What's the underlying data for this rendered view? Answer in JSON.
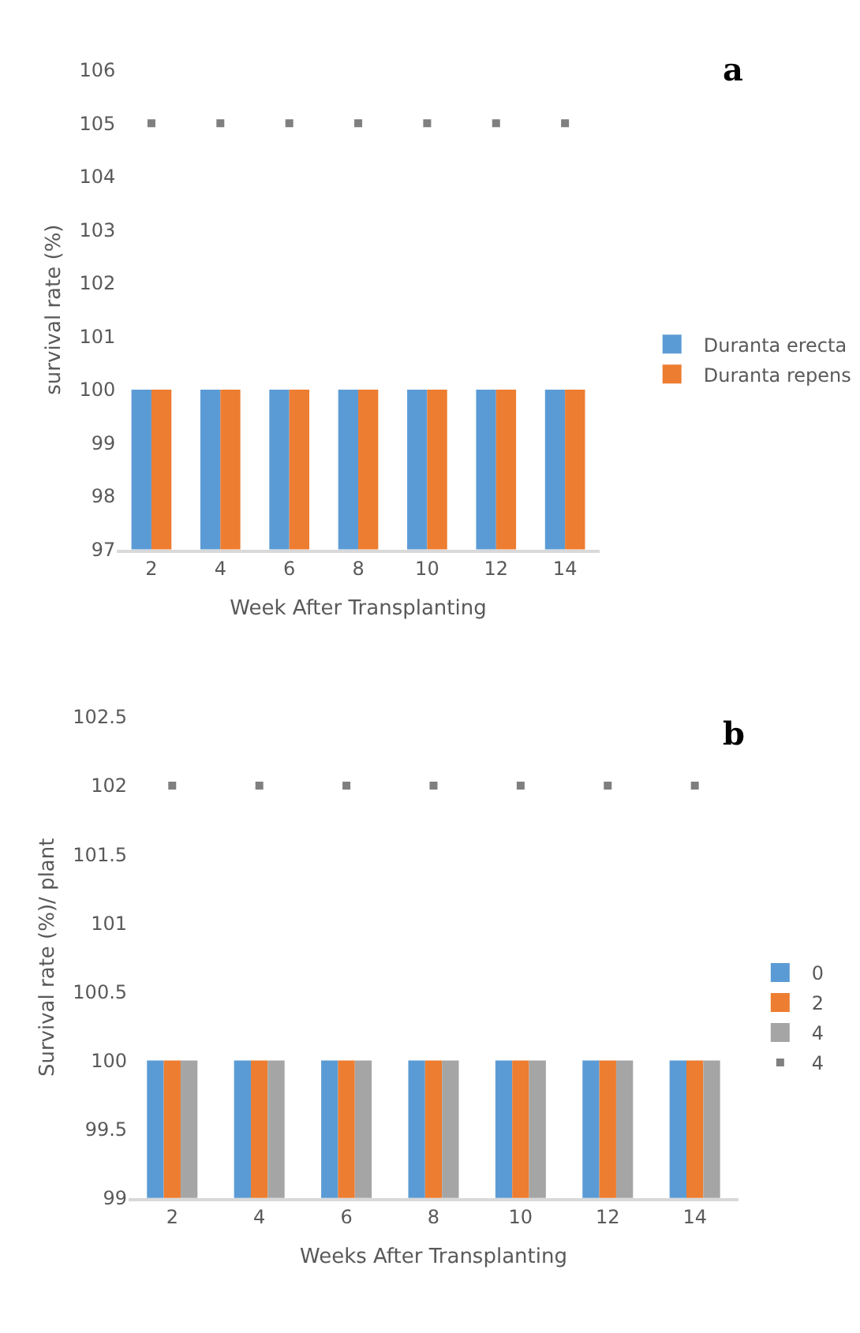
{
  "chart_data": [
    {
      "type": "bar",
      "xlabel": "Week After Transplanting",
      "ylabel": "survival rate (%)",
      "annotations": [
        "a"
      ],
      "categories": [
        "2",
        "4",
        "6",
        "8",
        "10",
        "12",
        "14"
      ],
      "ylim": [
        97,
        106
      ],
      "yticks": [
        97,
        98,
        99,
        100,
        101,
        102,
        103,
        104,
        105,
        106
      ],
      "grid": false,
      "legend": "right",
      "marker": "square",
      "series": [
        {
          "name": "Duranta erecta",
          "color": "#5b9bd5",
          "values": [
            100,
            100,
            100,
            100,
            100,
            100,
            100
          ]
        },
        {
          "name": "Duranta repens",
          "color": "#ed7d31",
          "values": [
            100,
            100,
            100,
            100,
            100,
            100,
            100
          ]
        },
        {
          "type": "scatter",
          "color": "#7f7f7f",
          "values": [
            105,
            105,
            105,
            105,
            105,
            105,
            105
          ]
        }
      ]
    },
    {
      "type": "bar",
      "xlabel": "Weeks After Transplanting",
      "ylabel": "Survival rate (%)/ plant",
      "annotations": [
        "b"
      ],
      "categories": [
        "2",
        "4",
        "6",
        "8",
        "10",
        "12",
        "14"
      ],
      "ylim": [
        99,
        102.5
      ],
      "yticks": [
        99,
        99.5,
        100,
        100.5,
        101,
        101.5,
        102,
        102.5
      ],
      "grid": false,
      "legend": "right",
      "marker": "square",
      "series": [
        {
          "name": "0",
          "color": "#5b9bd5",
          "values": [
            100,
            100,
            100,
            100,
            100,
            100,
            100
          ]
        },
        {
          "name": "2",
          "color": "#ed7d31",
          "values": [
            100,
            100,
            100,
            100,
            100,
            100,
            100
          ]
        },
        {
          "name": "4",
          "color": "#a5a5a5",
          "values": [
            100,
            100,
            100,
            100,
            100,
            100,
            100
          ]
        },
        {
          "name": "4",
          "type": "scatter",
          "color": "#7f7f7f",
          "values": [
            102,
            102,
            102,
            102,
            102,
            102,
            102
          ]
        }
      ]
    }
  ]
}
